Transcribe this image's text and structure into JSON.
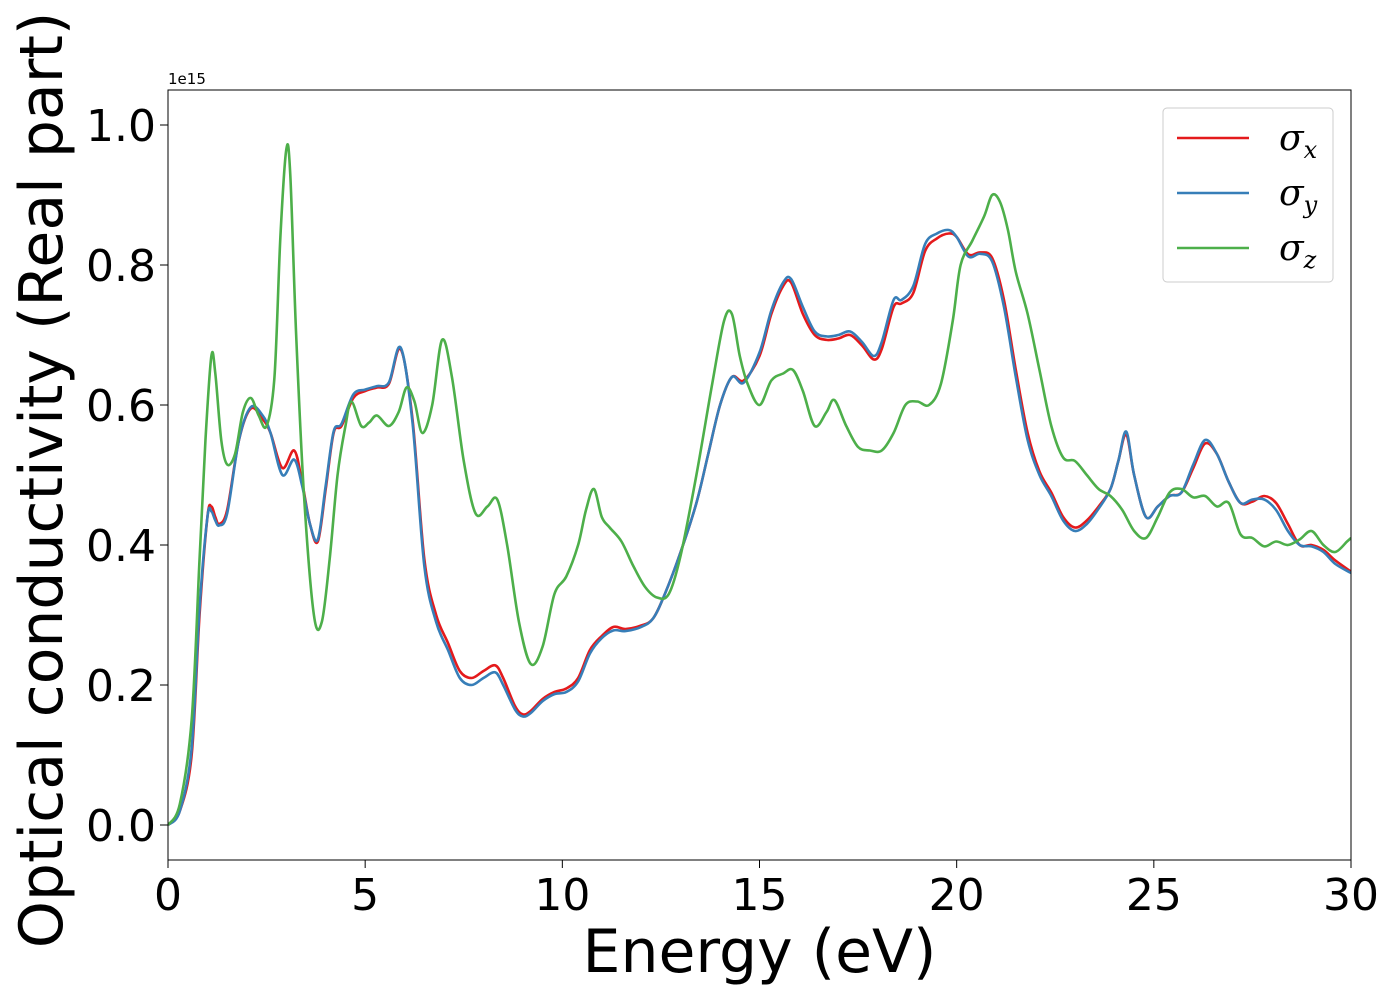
{
  "chart_data": {
    "type": "line",
    "xlabel": "Energy (eV)",
    "ylabel": "Optical conductivity (Real part)",
    "y_offset_label": "1e15",
    "xlim": [
      0,
      30
    ],
    "ylim": [
      -0.05,
      1.05
    ],
    "xticks": [
      0,
      5,
      10,
      15,
      20,
      25,
      30
    ],
    "xtick_labels": [
      "0",
      "5",
      "10",
      "15",
      "20",
      "25",
      "30"
    ],
    "yticks": [
      0.0,
      0.2,
      0.4,
      0.6,
      0.8,
      1.0
    ],
    "ytick_labels": [
      "0.0",
      "0.2",
      "0.4",
      "0.6",
      "0.8",
      "1.0"
    ],
    "grid": false,
    "legend_position": "top-right",
    "series": [
      {
        "key": "x",
        "name": "σ",
        "subscript": "x",
        "color": "#e41a1c",
        "x": [
          0,
          0.3,
          0.6,
          0.8,
          1.0,
          1.1,
          1.2,
          1.3,
          1.5,
          1.8,
          2.1,
          2.4,
          2.6,
          2.9,
          3.2,
          3.4,
          3.6,
          3.8,
          4.0,
          4.2,
          4.4,
          4.7,
          5.0,
          5.3,
          5.6,
          5.9,
          6.2,
          6.5,
          6.8,
          7.1,
          7.4,
          7.7,
          8.0,
          8.3,
          8.5,
          8.8,
          9.0,
          9.2,
          9.5,
          9.8,
          10.1,
          10.4,
          10.7,
          11.0,
          11.3,
          11.6,
          12.0,
          12.3,
          12.6,
          13.0,
          13.4,
          13.7,
          14.0,
          14.3,
          14.6,
          15.0,
          15.3,
          15.6,
          15.8,
          16.1,
          16.4,
          16.7,
          17.0,
          17.3,
          17.6,
          17.9,
          18.1,
          18.4,
          18.6,
          18.9,
          19.2,
          19.5,
          19.8,
          20.0,
          20.3,
          20.6,
          20.9,
          21.2,
          21.5,
          21.8,
          22.1,
          22.4,
          22.7,
          23.0,
          23.3,
          23.6,
          23.9,
          24.1,
          24.3,
          24.5,
          24.8,
          25.1,
          25.4,
          25.7,
          26.0,
          26.3,
          26.6,
          26.9,
          27.2,
          27.5,
          27.8,
          28.1,
          28.4,
          28.7,
          29.0,
          29.3,
          29.6,
          30.0
        ],
        "values": [
          0.0,
          0.02,
          0.1,
          0.3,
          0.44,
          0.455,
          0.44,
          0.43,
          0.45,
          0.55,
          0.595,
          0.58,
          0.56,
          0.51,
          0.535,
          0.49,
          0.43,
          0.405,
          0.48,
          0.56,
          0.57,
          0.61,
          0.62,
          0.625,
          0.63,
          0.68,
          0.58,
          0.38,
          0.3,
          0.26,
          0.22,
          0.21,
          0.22,
          0.228,
          0.21,
          0.17,
          0.158,
          0.163,
          0.18,
          0.19,
          0.195,
          0.21,
          0.25,
          0.27,
          0.283,
          0.28,
          0.285,
          0.295,
          0.33,
          0.39,
          0.46,
          0.53,
          0.6,
          0.64,
          0.635,
          0.67,
          0.73,
          0.77,
          0.775,
          0.73,
          0.7,
          0.693,
          0.695,
          0.7,
          0.685,
          0.665,
          0.68,
          0.74,
          0.745,
          0.76,
          0.82,
          0.838,
          0.845,
          0.84,
          0.815,
          0.818,
          0.81,
          0.75,
          0.65,
          0.56,
          0.505,
          0.475,
          0.44,
          0.425,
          0.435,
          0.455,
          0.48,
          0.52,
          0.558,
          0.5,
          0.44,
          0.455,
          0.47,
          0.475,
          0.51,
          0.545,
          0.53,
          0.49,
          0.46,
          0.462,
          0.47,
          0.46,
          0.43,
          0.4,
          0.4,
          0.393,
          0.378,
          0.362
        ]
      },
      {
        "key": "y",
        "name": "σ",
        "subscript": "y",
        "color": "#377eb8",
        "x": [
          0,
          0.3,
          0.6,
          0.8,
          1.0,
          1.1,
          1.2,
          1.3,
          1.5,
          1.8,
          2.1,
          2.4,
          2.6,
          2.9,
          3.2,
          3.4,
          3.6,
          3.8,
          4.0,
          4.2,
          4.4,
          4.7,
          5.0,
          5.3,
          5.6,
          5.9,
          6.2,
          6.5,
          6.8,
          7.1,
          7.4,
          7.7,
          8.0,
          8.3,
          8.5,
          8.8,
          9.0,
          9.2,
          9.5,
          9.8,
          10.1,
          10.4,
          10.7,
          11.0,
          11.3,
          11.6,
          12.0,
          12.3,
          12.6,
          13.0,
          13.4,
          13.7,
          14.0,
          14.3,
          14.6,
          15.0,
          15.3,
          15.6,
          15.8,
          16.1,
          16.4,
          16.7,
          17.0,
          17.3,
          17.6,
          17.9,
          18.1,
          18.4,
          18.6,
          18.9,
          19.2,
          19.5,
          19.8,
          20.0,
          20.3,
          20.6,
          20.9,
          21.2,
          21.5,
          21.8,
          22.1,
          22.4,
          22.7,
          23.0,
          23.3,
          23.6,
          23.9,
          24.1,
          24.3,
          24.5,
          24.8,
          25.1,
          25.4,
          25.7,
          26.0,
          26.3,
          26.6,
          26.9,
          27.2,
          27.5,
          27.8,
          28.1,
          28.4,
          28.7,
          29.0,
          29.3,
          29.6,
          30.0
        ],
        "values": [
          0.0,
          0.02,
          0.11,
          0.31,
          0.44,
          0.448,
          0.435,
          0.428,
          0.445,
          0.55,
          0.597,
          0.585,
          0.56,
          0.5,
          0.522,
          0.485,
          0.43,
          0.408,
          0.485,
          0.562,
          0.573,
          0.615,
          0.622,
          0.627,
          0.632,
          0.682,
          0.575,
          0.37,
          0.29,
          0.25,
          0.21,
          0.2,
          0.21,
          0.218,
          0.2,
          0.165,
          0.155,
          0.16,
          0.177,
          0.187,
          0.19,
          0.205,
          0.245,
          0.267,
          0.278,
          0.277,
          0.283,
          0.295,
          0.33,
          0.39,
          0.46,
          0.53,
          0.6,
          0.64,
          0.632,
          0.675,
          0.735,
          0.775,
          0.78,
          0.74,
          0.705,
          0.698,
          0.7,
          0.705,
          0.69,
          0.67,
          0.69,
          0.75,
          0.75,
          0.77,
          0.83,
          0.845,
          0.85,
          0.84,
          0.812,
          0.816,
          0.805,
          0.74,
          0.64,
          0.55,
          0.5,
          0.47,
          0.435,
          0.42,
          0.43,
          0.452,
          0.48,
          0.52,
          0.562,
          0.5,
          0.44,
          0.455,
          0.47,
          0.475,
          0.515,
          0.55,
          0.53,
          0.49,
          0.46,
          0.465,
          0.465,
          0.45,
          0.42,
          0.4,
          0.398,
          0.39,
          0.373,
          0.36
        ]
      },
      {
        "key": "z",
        "name": "σ",
        "subscript": "z",
        "color": "#4daf4a",
        "x": [
          0,
          0.3,
          0.6,
          0.8,
          0.95,
          1.1,
          1.2,
          1.35,
          1.5,
          1.7,
          1.9,
          2.1,
          2.3,
          2.5,
          2.7,
          2.85,
          3.0,
          3.1,
          3.25,
          3.45,
          3.7,
          3.9,
          4.1,
          4.3,
          4.5,
          4.65,
          4.9,
          5.1,
          5.3,
          5.6,
          5.85,
          6.05,
          6.25,
          6.45,
          6.7,
          6.95,
          7.2,
          7.5,
          7.8,
          8.1,
          8.35,
          8.6,
          8.9,
          9.2,
          9.5,
          9.8,
          10.1,
          10.4,
          10.6,
          10.8,
          11.0,
          11.2,
          11.5,
          11.8,
          12.1,
          12.4,
          12.7,
          13.0,
          13.4,
          13.8,
          14.1,
          14.3,
          14.5,
          14.7,
          15.0,
          15.3,
          15.6,
          15.85,
          16.1,
          16.4,
          16.7,
          16.9,
          17.2,
          17.5,
          17.8,
          18.1,
          18.4,
          18.7,
          19.0,
          19.3,
          19.6,
          19.9,
          20.1,
          20.4,
          20.7,
          20.9,
          21.1,
          21.3,
          21.5,
          21.8,
          22.1,
          22.4,
          22.7,
          23.0,
          23.3,
          23.6,
          23.9,
          24.2,
          24.5,
          24.8,
          25.1,
          25.4,
          25.7,
          26.0,
          26.3,
          26.6,
          26.9,
          27.2,
          27.5,
          27.8,
          28.1,
          28.4,
          28.7,
          29.0,
          29.3,
          29.6,
          29.9,
          30.0
        ],
        "values": [
          0.0,
          0.03,
          0.15,
          0.38,
          0.55,
          0.67,
          0.645,
          0.55,
          0.515,
          0.53,
          0.59,
          0.61,
          0.585,
          0.57,
          0.64,
          0.84,
          0.965,
          0.93,
          0.7,
          0.47,
          0.3,
          0.29,
          0.38,
          0.5,
          0.57,
          0.605,
          0.57,
          0.575,
          0.585,
          0.57,
          0.59,
          0.625,
          0.605,
          0.56,
          0.6,
          0.693,
          0.64,
          0.52,
          0.445,
          0.455,
          0.465,
          0.4,
          0.29,
          0.23,
          0.255,
          0.33,
          0.355,
          0.4,
          0.45,
          0.48,
          0.44,
          0.425,
          0.405,
          0.37,
          0.34,
          0.325,
          0.33,
          0.385,
          0.5,
          0.63,
          0.72,
          0.73,
          0.67,
          0.63,
          0.6,
          0.635,
          0.645,
          0.65,
          0.62,
          0.57,
          0.59,
          0.607,
          0.57,
          0.54,
          0.535,
          0.535,
          0.56,
          0.6,
          0.605,
          0.6,
          0.63,
          0.72,
          0.8,
          0.835,
          0.87,
          0.9,
          0.89,
          0.85,
          0.79,
          0.73,
          0.65,
          0.57,
          0.525,
          0.52,
          0.5,
          0.48,
          0.47,
          0.45,
          0.42,
          0.41,
          0.44,
          0.475,
          0.48,
          0.468,
          0.47,
          0.455,
          0.46,
          0.415,
          0.41,
          0.398,
          0.405,
          0.4,
          0.408,
          0.42,
          0.4,
          0.39,
          0.405,
          0.41
        ]
      }
    ]
  }
}
